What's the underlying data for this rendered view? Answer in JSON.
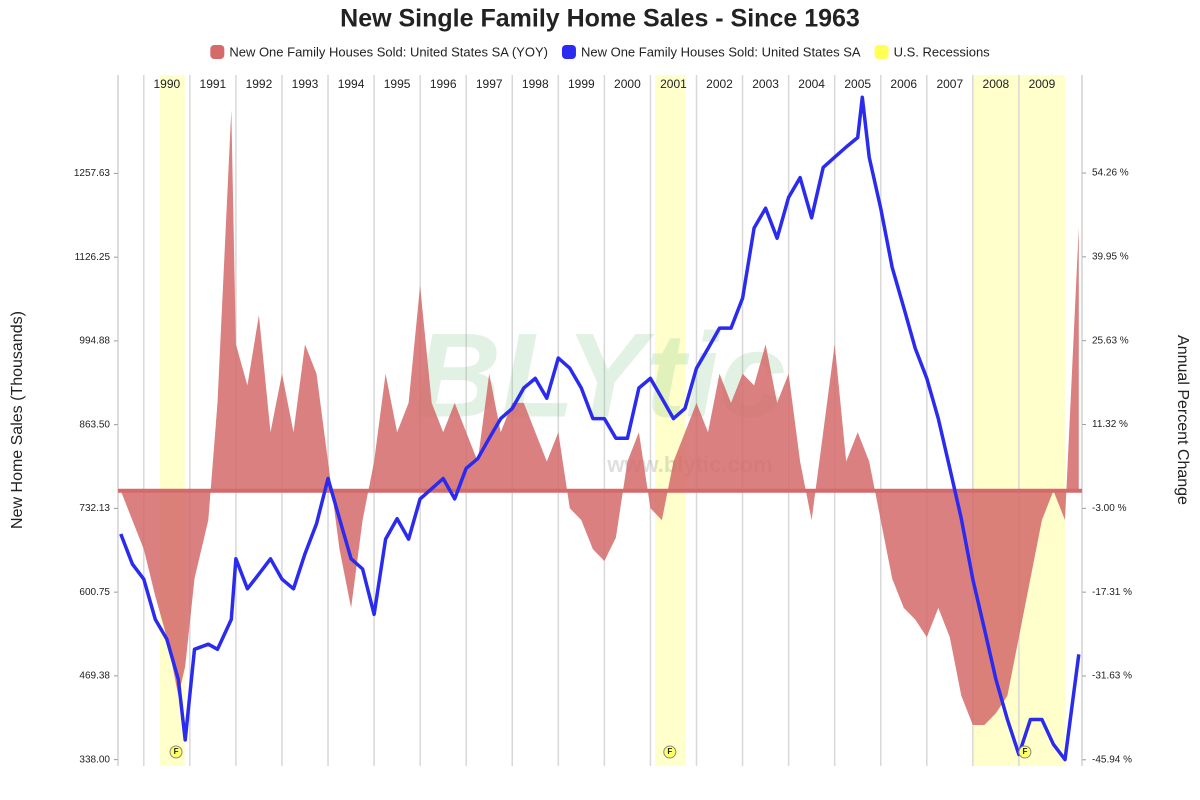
{
  "chart_data": {
    "type": "line",
    "title": "New Single Family Home Sales - Since 1963",
    "y_label": "New Home Sales (Thousands)",
    "y2_label": "Annual Percent Change",
    "watermark": "BLYtic",
    "watermark_url": "www.blytic.com",
    "x": [
      1989.5,
      1989.75,
      1990,
      1990.25,
      1990.5,
      1990.75,
      1990.9,
      1991.1,
      1991.4,
      1991.6,
      1991.9,
      1992,
      1992.25,
      1992.5,
      1992.75,
      1993,
      1993.25,
      1993.5,
      1993.75,
      1994,
      1994.25,
      1994.5,
      1994.75,
      1995,
      1995.25,
      1995.5,
      1995.75,
      1996,
      1996.25,
      1996.5,
      1996.75,
      1997,
      1997.25,
      1997.5,
      1997.75,
      1998,
      1998.25,
      1998.5,
      1998.75,
      1999,
      1999.25,
      1999.5,
      1999.75,
      2000,
      2000.25,
      2000.5,
      2000.75,
      2001,
      2001.25,
      2001.5,
      2001.75,
      2002,
      2002.25,
      2002.5,
      2002.75,
      2003,
      2003.25,
      2003.5,
      2003.75,
      2004,
      2004.25,
      2004.5,
      2004.75,
      2005,
      2005.25,
      2005.5,
      2005.6,
      2005.75,
      2006,
      2006.25,
      2006.5,
      2006.75,
      2007,
      2007.25,
      2007.5,
      2007.75,
      2008,
      2008.25,
      2008.5,
      2008.75,
      2009,
      2009.25,
      2009.5,
      2009.75,
      2010,
      2010.3
    ],
    "series": [
      {
        "name": "New One Family Houses Sold: United States SA (YOY)",
        "color": "#d46a6a",
        "kind": "area",
        "axis": "y2",
        "values": [
          0,
          -5,
          -10,
          -18,
          -25,
          -35,
          -30,
          -15,
          -5,
          15,
          65,
          25,
          18,
          30,
          10,
          20,
          10,
          25,
          20,
          5,
          -10,
          -20,
          -5,
          5,
          20,
          10,
          15,
          35,
          15,
          10,
          15,
          10,
          5,
          20,
          10,
          15,
          15,
          10,
          5,
          10,
          -3,
          -5,
          -10,
          -12,
          -8,
          5,
          10,
          -3,
          -5,
          5,
          10,
          15,
          10,
          20,
          15,
          20,
          18,
          25,
          15,
          20,
          5,
          -5,
          10,
          25,
          5,
          10,
          8,
          5,
          -5,
          -15,
          -20,
          -22,
          -25,
          -20,
          -25,
          -35,
          -40,
          -40,
          -38,
          -35,
          -25,
          -15,
          -5,
          0,
          -5,
          45
        ]
      },
      {
        "name": "New One Family Houses Sold: United States SA",
        "color": "#2b2bef",
        "kind": "line",
        "axis": "y",
        "values": [
          692,
          645,
          621,
          558,
          527,
          464,
          369,
          511,
          519,
          511,
          558,
          653,
          606,
          629,
          653,
          621,
          606,
          661,
          708,
          779,
          716,
          653,
          637,
          566,
          684,
          716,
          684,
          747,
          763,
          779,
          747,
          795,
          810,
          842,
          873,
          889,
          921,
          936,
          905,
          968,
          952,
          921,
          873,
          873,
          842,
          842,
          921,
          936,
          905,
          873,
          889,
          952,
          983,
          1015,
          1015,
          1062,
          1172,
          1203,
          1156,
          1220,
          1251,
          1188,
          1267,
          1283,
          1299,
          1314,
          1377,
          1283,
          1203,
          1110,
          1047,
          983,
          936,
          873,
          795,
          716,
          621,
          543,
          464,
          401,
          346,
          401,
          401,
          362,
          338,
          503
        ]
      }
    ],
    "recessions": {
      "name": "U.S. Recessions",
      "color": "#ffffcc",
      "legend_color": "#ffff55",
      "periods": [
        [
          1990.35,
          1990.89
        ],
        [
          2001.1,
          2001.77
        ],
        [
          2008.0,
          2010.0
        ]
      ]
    },
    "event_markers": {
      "label": "F",
      "x": [
        1990.7,
        2001.42,
        2009.13
      ]
    },
    "xlim": [
      1989.44,
      2010.37
    ],
    "xticks": [
      {
        "value": 1990,
        "label": "1990"
      },
      {
        "value": 1991,
        "label": "1991"
      },
      {
        "value": 1992,
        "label": "1992"
      },
      {
        "value": 1993,
        "label": "1993"
      },
      {
        "value": 1994,
        "label": "1994"
      },
      {
        "value": 1995,
        "label": "1995"
      },
      {
        "value": 1996,
        "label": "1996"
      },
      {
        "value": 1997,
        "label": "1997"
      },
      {
        "value": 1998,
        "label": "1998"
      },
      {
        "value": 1999,
        "label": "1999"
      },
      {
        "value": 2000,
        "label": "2000"
      },
      {
        "value": 2001,
        "label": "2001"
      },
      {
        "value": 2002,
        "label": "2002"
      },
      {
        "value": 2003,
        "label": "2003"
      },
      {
        "value": 2004,
        "label": "2004"
      },
      {
        "value": 2005,
        "label": "2005"
      },
      {
        "value": 2006,
        "label": "2006"
      },
      {
        "value": 2007,
        "label": "2007"
      },
      {
        "value": 2008,
        "label": "2008"
      },
      {
        "value": 2009,
        "label": "2009"
      }
    ],
    "ylim": [
      328,
      1412
    ],
    "yticks": [
      {
        "value": 338,
        "label": "338.00"
      },
      469.38,
      600.75,
      732.13,
      {
        "value": 863.5,
        "label": "863.50"
      },
      994.88,
      1126.25,
      1257.63
    ],
    "y2lim": [
      -47,
      71
    ],
    "y2ticks": [
      {
        "value": -45.94,
        "label": "-45.94 %"
      },
      {
        "value": -31.63,
        "label": "-31.63 %"
      },
      {
        "value": -17.31,
        "label": "-17.31 %"
      },
      {
        "value": -3,
        "label": "-3.00 %"
      },
      {
        "value": 11.32,
        "label": "11.32 %"
      },
      {
        "value": 25.63,
        "label": "25.63 %"
      },
      {
        "value": 39.95,
        "label": "39.95 %"
      },
      {
        "value": 54.26,
        "label": "54.26 %"
      }
    ]
  }
}
